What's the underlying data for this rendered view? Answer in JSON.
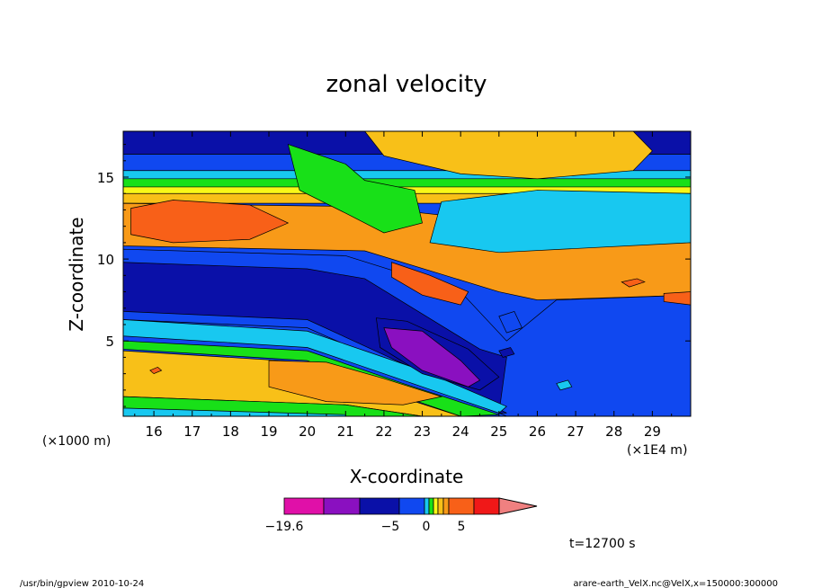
{
  "chart_data": {
    "type": "heatmap",
    "title": "zonal velocity",
    "xlabel": "X-coordinate",
    "ylabel": "Z-coordinate",
    "x_unit_left": "(×1000 m)",
    "x_unit_right": "(×1E4 m)",
    "xlim": [
      15.2,
      30.0
    ],
    "ylim": [
      0.4,
      17.8
    ],
    "x_ticks": [
      "16",
      "17",
      "18",
      "19",
      "20",
      "21",
      "22",
      "23",
      "24",
      "25",
      "26",
      "27",
      "28",
      "29"
    ],
    "y_ticks": [
      "5",
      "10",
      "15"
    ],
    "colorbar": {
      "labels": [
        {
          "text": "−19.6",
          "value": -19.6
        },
        {
          "text": "−5",
          "value": -5
        },
        {
          "text": "0",
          "value": 0
        },
        {
          "text": "5",
          "value": 5
        }
      ],
      "colors": [
        "#e010a8",
        "#8a10c0",
        "#0a10a8",
        "#1048f0",
        "#18c8f0",
        "#18e018",
        "#f8f818",
        "#f8c018",
        "#f89a18",
        "#f86018",
        "#f01818",
        "#f08080"
      ]
    },
    "time_label": "t=12700 s",
    "bands": [
      {
        "color": "#0a10a8",
        "top": [
          [
            15.2,
            17.8
          ],
          [
            30.0,
            17.8
          ]
        ],
        "bottom": [
          [
            15.2,
            16.4
          ],
          [
            30.0,
            16.4
          ]
        ]
      },
      {
        "color": "#1048f0",
        "top": [
          [
            15.2,
            16.4
          ],
          [
            30.0,
            16.4
          ]
        ],
        "bottom": [
          [
            15.2,
            15.0
          ],
          [
            30.0,
            15.0
          ]
        ]
      },
      {
        "color": "#18c8f0",
        "top": [
          [
            15.2,
            15.4
          ],
          [
            30.0,
            15.4
          ]
        ],
        "bottom": [
          [
            15.2,
            14.6
          ],
          [
            30.0,
            14.6
          ]
        ]
      },
      {
        "color": "#18e018",
        "top": [
          [
            15.2,
            14.9
          ],
          [
            30.0,
            14.9
          ]
        ],
        "bottom": [
          [
            15.2,
            14.2
          ],
          [
            30.0,
            14.2
          ]
        ]
      },
      {
        "color": "#f8f818",
        "top": [
          [
            15.2,
            14.4
          ],
          [
            30.0,
            14.4
          ]
        ],
        "bottom": [
          [
            15.2,
            13.8
          ],
          [
            30.0,
            13.8
          ]
        ]
      },
      {
        "color": "#f8c018",
        "top": [
          [
            15.2,
            14.0
          ],
          [
            30.0,
            14.0
          ]
        ],
        "bottom": [
          [
            15.2,
            13.4
          ],
          [
            30.0,
            13.4
          ]
        ]
      },
      {
        "color": "#f89a18",
        "top": [
          [
            15.2,
            13.4
          ],
          [
            21.5,
            13.2
          ],
          [
            30.0,
            11.0
          ]
        ],
        "bottom": [
          [
            15.2,
            10.8
          ],
          [
            21.5,
            10.5
          ],
          [
            25.0,
            8.0
          ],
          [
            26.0,
            7.5
          ],
          [
            30.0,
            7.8
          ]
        ]
      },
      {
        "color": "#1048f0",
        "top": [
          [
            15.2,
            10.6
          ],
          [
            21.0,
            10.2
          ],
          [
            24.0,
            8.0
          ],
          [
            25.2,
            5.0
          ],
          [
            26.5,
            7.5
          ],
          [
            30.0,
            7.8
          ]
        ],
        "bottom": [
          [
            15.2,
            6.3
          ],
          [
            20.0,
            5.8
          ],
          [
            25.2,
            0.4
          ],
          [
            30.0,
            0.4
          ]
        ]
      },
      {
        "color": "#0a10a8",
        "top": [
          [
            15.2,
            9.8
          ],
          [
            20.0,
            9.4
          ],
          [
            21.5,
            8.8
          ],
          [
            24.5,
            4.5
          ],
          [
            25.2,
            4.0
          ],
          [
            25.0,
            0.6
          ]
        ],
        "bottom": [
          [
            15.2,
            6.8
          ],
          [
            20.0,
            6.3
          ],
          [
            24.0,
            2.0
          ],
          [
            25.2,
            0.6
          ]
        ]
      },
      {
        "color": "#18c8f0",
        "top": [
          [
            15.2,
            6.3
          ],
          [
            20.0,
            5.6
          ],
          [
            23.0,
            3.2
          ],
          [
            25.2,
            1.0
          ]
        ],
        "bottom": [
          [
            15.2,
            5.3
          ],
          [
            20.0,
            4.6
          ],
          [
            22.5,
            2.6
          ],
          [
            25.0,
            0.6
          ]
        ]
      },
      {
        "color": "#18e018",
        "top": [
          [
            15.2,
            5.0
          ],
          [
            20.0,
            4.4
          ],
          [
            22.5,
            2.4
          ],
          [
            25.0,
            0.5
          ]
        ],
        "bottom": [
          [
            15.2,
            4.5
          ],
          [
            20.0,
            3.8
          ],
          [
            22.0,
            2.0
          ],
          [
            24.0,
            0.4
          ]
        ]
      },
      {
        "color": "#f8c018",
        "top": [
          [
            15.2,
            4.4
          ],
          [
            20.0,
            3.7
          ],
          [
            22.0,
            1.9
          ],
          [
            24.0,
            0.4
          ]
        ],
        "bottom": [
          [
            15.2,
            1.6
          ],
          [
            21.0,
            1.1
          ],
          [
            23.0,
            0.4
          ]
        ]
      },
      {
        "color": "#18e018",
        "top": [
          [
            15.2,
            1.6
          ],
          [
            21.0,
            1.1
          ],
          [
            23.0,
            0.4
          ]
        ],
        "bottom": [
          [
            15.2,
            0.8
          ],
          [
            21.0,
            0.4
          ]
        ]
      },
      {
        "color": "#18c8f0",
        "top": [
          [
            15.2,
            0.9
          ],
          [
            21.0,
            0.5
          ]
        ],
        "bottom": [
          [
            15.2,
            0.4
          ],
          [
            21.0,
            0.4
          ]
        ]
      }
    ],
    "blobs": [
      {
        "color": "#f86018",
        "points": [
          [
            15.4,
            13.1
          ],
          [
            16.5,
            13.6
          ],
          [
            18.5,
            13.3
          ],
          [
            19.5,
            12.2
          ],
          [
            18.5,
            11.2
          ],
          [
            16.5,
            11.0
          ],
          [
            15.4,
            11.5
          ]
        ]
      },
      {
        "color": "#f89a18",
        "points": [
          [
            22.0,
            17.8
          ],
          [
            25.5,
            17.8
          ],
          [
            27.5,
            17.3
          ],
          [
            28.8,
            16.4
          ],
          [
            28.0,
            15.6
          ],
          [
            26.0,
            15.2
          ],
          [
            24.0,
            15.4
          ],
          [
            22.5,
            16.2
          ]
        ]
      },
      {
        "color": "#f8c018",
        "points": [
          [
            21.5,
            17.8
          ],
          [
            22.0,
            16.3
          ],
          [
            24.0,
            15.2
          ],
          [
            26.0,
            14.9
          ],
          [
            28.5,
            15.4
          ],
          [
            29.0,
            16.6
          ],
          [
            28.5,
            17.8
          ]
        ]
      },
      {
        "color": "#18e018",
        "points": [
          [
            19.5,
            17.0
          ],
          [
            21.0,
            15.8
          ],
          [
            21.5,
            14.8
          ],
          [
            22.8,
            14.2
          ],
          [
            23.0,
            12.2
          ],
          [
            22.0,
            11.6
          ],
          [
            21.0,
            12.8
          ],
          [
            19.8,
            14.2
          ]
        ]
      },
      {
        "color": "#1048f0",
        "points": [
          [
            24.0,
            12.8
          ],
          [
            26.0,
            13.5
          ],
          [
            28.5,
            13.6
          ],
          [
            30.0,
            13.2
          ],
          [
            30.0,
            11.5
          ],
          [
            27.0,
            11.0
          ],
          [
            25.0,
            11.2
          ]
        ]
      },
      {
        "color": "#18c8f0",
        "points": [
          [
            23.5,
            13.5
          ],
          [
            26.0,
            14.2
          ],
          [
            30.0,
            14.0
          ],
          [
            30.0,
            11.0
          ],
          [
            25.0,
            10.4
          ],
          [
            23.2,
            11.0
          ]
        ]
      },
      {
        "color": "#f86018",
        "points": [
          [
            22.2,
            9.8
          ],
          [
            23.2,
            9.0
          ],
          [
            24.2,
            8.0
          ],
          [
            24.0,
            7.2
          ],
          [
            23.0,
            7.8
          ],
          [
            22.2,
            8.9
          ]
        ]
      },
      {
        "color": "#0a10a8",
        "points": [
          [
            21.8,
            6.4
          ],
          [
            22.6,
            6.2
          ],
          [
            24.2,
            4.5
          ],
          [
            25.0,
            2.8
          ],
          [
            24.5,
            2.0
          ],
          [
            23.0,
            3.0
          ],
          [
            21.9,
            4.6
          ]
        ]
      },
      {
        "color": "#8a10c0",
        "points": [
          [
            22.0,
            5.8
          ],
          [
            23.0,
            5.6
          ],
          [
            24.0,
            3.8
          ],
          [
            24.5,
            2.6
          ],
          [
            24.2,
            2.2
          ],
          [
            23.0,
            3.2
          ],
          [
            22.2,
            4.6
          ]
        ]
      },
      {
        "color": "#f89a18",
        "points": [
          [
            19.0,
            3.8
          ],
          [
            20.5,
            3.7
          ],
          [
            22.0,
            2.7
          ],
          [
            23.5,
            1.6
          ],
          [
            22.5,
            1.1
          ],
          [
            20.5,
            1.3
          ],
          [
            19.0,
            2.2
          ]
        ]
      },
      {
        "color": "#f86018",
        "points": [
          [
            28.2,
            8.6
          ],
          [
            28.6,
            8.8
          ],
          [
            28.8,
            8.6
          ],
          [
            28.4,
            8.3
          ]
        ]
      },
      {
        "color": "#f86018",
        "points": [
          [
            29.3,
            7.9
          ],
          [
            30.0,
            8.0
          ],
          [
            30.0,
            7.2
          ],
          [
            29.3,
            7.4
          ]
        ]
      },
      {
        "color": "#f86018",
        "points": [
          [
            15.9,
            3.2
          ],
          [
            16.1,
            3.4
          ],
          [
            16.2,
            3.2
          ],
          [
            16.0,
            3.0
          ]
        ]
      },
      {
        "color": "#18c8f0",
        "points": [
          [
            26.5,
            2.4
          ],
          [
            26.8,
            2.6
          ],
          [
            26.9,
            2.2
          ],
          [
            26.6,
            2.0
          ]
        ]
      },
      {
        "color": "#0a10a8",
        "points": [
          [
            25.0,
            4.4
          ],
          [
            25.3,
            4.6
          ],
          [
            25.4,
            4.2
          ],
          [
            25.1,
            4.0
          ]
        ]
      },
      {
        "color": "#1048f0",
        "points": [
          [
            25.0,
            6.5
          ],
          [
            25.4,
            6.8
          ],
          [
            25.6,
            5.8
          ],
          [
            25.2,
            5.5
          ]
        ]
      }
    ]
  },
  "footer": {
    "left": "/usr/bin/gpview   2010-10-24",
    "right": "arare-earth_VelX.nc@VelX,x=150000:300000"
  }
}
